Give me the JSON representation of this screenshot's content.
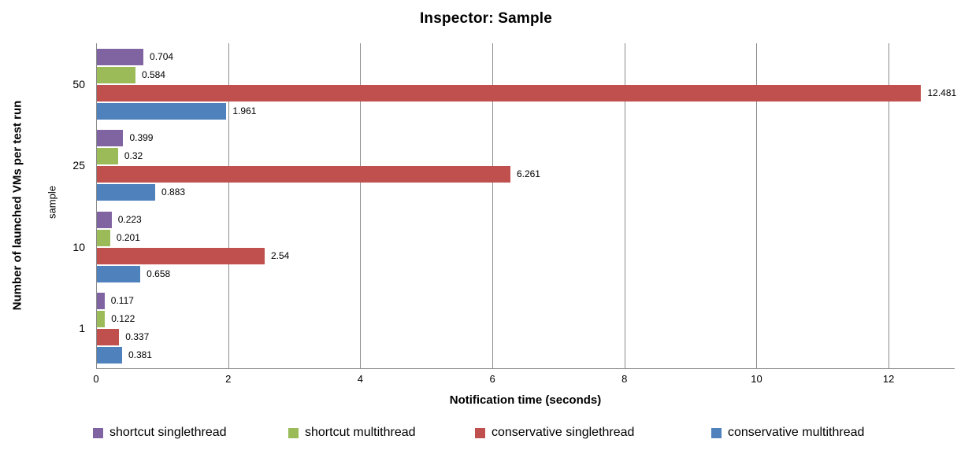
{
  "chart_data": {
    "type": "bar",
    "orientation": "horizontal",
    "title": "Inspector: Sample",
    "xlabel": "Notification time (seconds)",
    "ylabel": "Number of launched VMs per test run",
    "ylabel_secondary": "sample",
    "categories": [
      "50",
      "25",
      "10",
      "1"
    ],
    "series": [
      {
        "name": "shortcut singlethread",
        "color": "#8064A2",
        "values": [
          "0.704",
          "0.399",
          "0.223",
          "0.117"
        ]
      },
      {
        "name": "shortcut multithread",
        "color": "#9BBB59",
        "values": [
          "0.584",
          "0.32",
          "0.201",
          "0.122"
        ]
      },
      {
        "name": "conservative singlethread",
        "color": "#C0504D",
        "values": [
          "12.481",
          "6.261",
          "2.54",
          "0.337"
        ]
      },
      {
        "name": "conservative multithread",
        "color": "#4F81BD",
        "values": [
          "1.961",
          "0.883",
          "0.658",
          "0.381"
        ]
      }
    ],
    "x_ticks": [
      "0",
      "2",
      "4",
      "6",
      "8",
      "10",
      "12"
    ],
    "xlim": [
      0,
      13
    ],
    "grid": true,
    "gridline_color": "#8c8c8c",
    "legend_position": "bottom"
  }
}
